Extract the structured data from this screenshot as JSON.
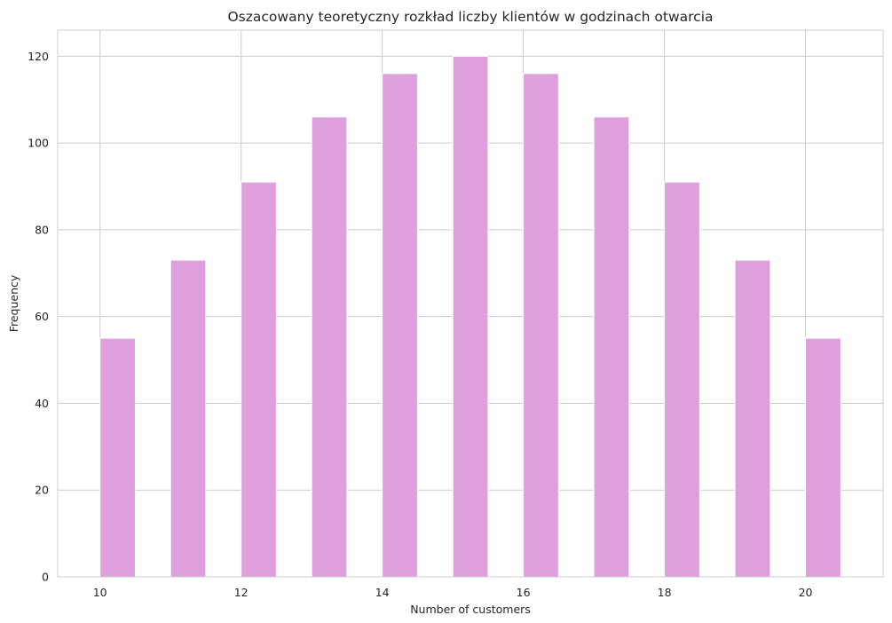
{
  "chart_data": {
    "type": "bar",
    "title": "Oszacowany teoretyczny rozkład liczby klientów w godzinach otwarcia",
    "xlabel": "Number of customers",
    "ylabel": "Frequency",
    "x": [
      10,
      11,
      12,
      13,
      14,
      15,
      16,
      17,
      18,
      19,
      20
    ],
    "values": [
      55,
      73,
      91,
      106,
      116,
      120,
      116,
      106,
      91,
      73,
      55
    ],
    "bar_width": 0.5,
    "xlim": [
      9.4,
      21.1
    ],
    "ylim": [
      0,
      126
    ],
    "xticks": [
      10,
      12,
      14,
      16,
      18,
      20
    ],
    "yticks": [
      0,
      20,
      40,
      60,
      80,
      100,
      120
    ],
    "grid": true,
    "bar_color": "#dda0dd",
    "grid_color": "#cccccc"
  }
}
